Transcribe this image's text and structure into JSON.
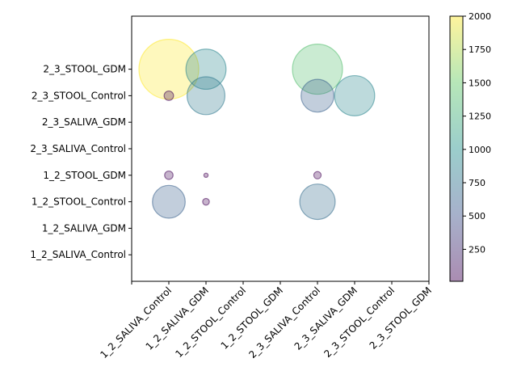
{
  "chart_data": {
    "type": "scatter",
    "title": "",
    "xlabel": "",
    "ylabel": "",
    "x_categories": [
      "1_2_SALIVA_Control",
      "1_2_SALIVA_GDM",
      "1_2_STOOL_Control",
      "1_2_STOOL_GDM",
      "2_3_SALIVA_Control",
      "2_3_SALIVA_GDM",
      "2_3_STOOL_Control",
      "2_3_STOOL_GDM"
    ],
    "y_categories": [
      "1_2_SALIVA_Control",
      "1_2_SALIVA_GDM",
      "1_2_STOOL_Control",
      "1_2_STOOL_GDM",
      "2_3_SALIVA_Control",
      "2_3_SALIVA_GDM",
      "2_3_STOOL_Control",
      "2_3_STOOL_GDM"
    ],
    "xlim": [
      -1,
      7
    ],
    "ylim": [
      -1,
      9
    ],
    "colorbar": {
      "min": 10,
      "max": 2000,
      "ticks": [
        250,
        500,
        750,
        1000,
        1250,
        1500,
        1750,
        2000
      ],
      "colormap": "viridis",
      "alpha": 0.3
    },
    "points": [
      {
        "x": "1_2_SALIVA_Control",
        "y": "2_3_STOOL_GDM",
        "value": 2000
      },
      {
        "x": "1_2_SALIVA_GDM",
        "y": "2_3_STOOL_GDM",
        "value": 900
      },
      {
        "x": "2_3_SALIVA_Control",
        "y": "2_3_STOOL_GDM",
        "value": 1400
      },
      {
        "x": "1_2_SALIVA_Control",
        "y": "2_3_STOOL_Control",
        "value": 50
      },
      {
        "x": "1_2_SALIVA_GDM",
        "y": "2_3_STOOL_Control",
        "value": 800
      },
      {
        "x": "2_3_SALIVA_Control",
        "y": "2_3_STOOL_Control",
        "value": 600
      },
      {
        "x": "2_3_SALIVA_GDM",
        "y": "2_3_STOOL_Control",
        "value": 900
      },
      {
        "x": "1_2_SALIVA_Control",
        "y": "1_2_STOOL_GDM",
        "value": 40
      },
      {
        "x": "1_2_SALIVA_GDM",
        "y": "1_2_STOOL_GDM",
        "value": 10
      },
      {
        "x": "2_3_SALIVA_Control",
        "y": "1_2_STOOL_GDM",
        "value": 30
      },
      {
        "x": "1_2_SALIVA_Control",
        "y": "1_2_STOOL_Control",
        "value": 600
      },
      {
        "x": "1_2_SALIVA_GDM",
        "y": "1_2_STOOL_Control",
        "value": 25
      },
      {
        "x": "2_3_SALIVA_Control",
        "y": "1_2_STOOL_Control",
        "value": 700
      }
    ]
  }
}
